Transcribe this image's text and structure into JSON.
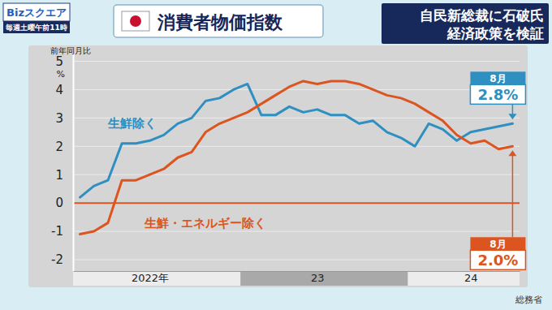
{
  "chart_data": {
    "type": "line",
    "logo": "Bizスクエア",
    "logo_sub": "毎週土曜午前11時",
    "title": "消費者物価指数",
    "headline": [
      "自民新総裁に石破氏",
      "経済政策を検証"
    ],
    "ylabel": "前年同月比",
    "yunit": "%",
    "source": "総務省",
    "categories": [
      null,
      null,
      null,
      null,
      null,
      "2022年",
      null,
      null,
      null,
      null,
      null,
      null,
      null,
      null,
      null,
      null,
      null,
      "23",
      null,
      null,
      null,
      null,
      null,
      null,
      null,
      null,
      null,
      null,
      "24",
      null,
      null,
      null
    ],
    "series": [
      {
        "name": "生鮮除く",
        "color": "#2e8fc0",
        "values": [
          0.2,
          0.6,
          0.8,
          2.1,
          2.1,
          2.2,
          2.4,
          2.8,
          3.0,
          3.6,
          3.7,
          4.0,
          4.2,
          3.1,
          3.1,
          3.4,
          3.2,
          3.3,
          3.1,
          3.1,
          2.8,
          2.9,
          2.5,
          2.3,
          2.0,
          2.8,
          2.6,
          2.2,
          2.5,
          2.6,
          2.7,
          2.8
        ],
        "annotation": "8月",
        "value_labels": [
          null,
          null,
          null,
          null,
          null,
          null,
          null,
          null,
          null,
          null,
          null,
          null,
          null,
          null,
          null,
          null,
          null,
          null,
          null,
          null,
          null,
          null,
          null,
          null,
          null,
          null,
          null,
          null,
          null,
          null,
          null,
          "2.8%"
        ]
      },
      {
        "name": "生鮮・エネルギー除く",
        "color": "#dc5520",
        "values": [
          -1.1,
          -1.0,
          -0.7,
          0.8,
          0.8,
          1.0,
          1.2,
          1.6,
          1.8,
          2.5,
          2.8,
          3.0,
          3.2,
          3.5,
          3.8,
          4.1,
          4.3,
          4.2,
          4.3,
          4.3,
          4.2,
          4.0,
          3.8,
          3.7,
          3.5,
          3.2,
          2.9,
          2.4,
          2.1,
          2.2,
          1.9,
          2.0
        ],
        "annotation": "8月",
        "value_labels": [
          null,
          null,
          null,
          null,
          null,
          null,
          null,
          null,
          null,
          null,
          null,
          null,
          null,
          null,
          null,
          null,
          null,
          null,
          null,
          null,
          null,
          null,
          null,
          null,
          null,
          null,
          null,
          null,
          null,
          null,
          null,
          "2.0%"
        ]
      }
    ],
    "ylim": [
      -2.4,
      5.3
    ],
    "yticks": [
      -2,
      -1,
      0,
      1,
      2,
      3,
      4,
      5
    ],
    "grid": true
  }
}
